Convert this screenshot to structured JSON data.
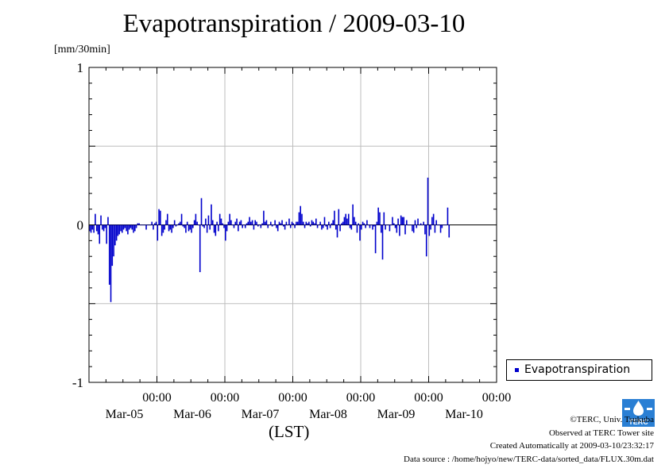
{
  "header": {
    "title": "Evapotranspiration / 2009-03-10",
    "unit_label": "[mm/30min]",
    "xlabel": "(LST)"
  },
  "legend": {
    "label": "Evapotranspiration",
    "color": "#0000cc"
  },
  "credits": {
    "line1": "©TERC, Univ. Tsukuba",
    "line2": "Observed at TERC Tower site",
    "line3": "Created Automatically at 2009-03-10/23:32:17",
    "line4": "Data source : /home/hojyo/new/TERC-data/sorted_data/FLUX.30m.dat"
  },
  "logo": {
    "icon": "terc-logo-icon",
    "text": "TERC",
    "color": "#2a7fd4"
  },
  "chart_data": {
    "type": "bar",
    "title": "Evapotranspiration / 2009-03-10",
    "ylabel": "[mm/30min]",
    "xlabel": "(LST)",
    "ylim": [
      -1,
      1
    ],
    "yticks": [
      {
        "value": 1,
        "label": "1"
      },
      {
        "value": 0,
        "label": "0"
      },
      {
        "value": -1,
        "label": "-1"
      }
    ],
    "xlim": [
      0,
      6
    ],
    "xticks": [
      {
        "value": 1,
        "label_time": "00:00",
        "label_date": "Mar-05"
      },
      {
        "value": 2,
        "label_time": "00:00",
        "label_date": "Mar-06"
      },
      {
        "value": 3,
        "label_time": "00:00",
        "label_date": "Mar-07"
      },
      {
        "value": 4,
        "label_time": "00:00",
        "label_date": "Mar-08"
      },
      {
        "value": 5,
        "label_time": "00:00",
        "label_date": "Mar-09"
      },
      {
        "value": 6,
        "label_time": "00:00",
        "label_date": "Mar-10"
      }
    ],
    "grid": true,
    "legend_position": "bottom-right",
    "series": [
      {
        "name": "Evapotranspiration",
        "color": "#0000cc",
        "x_start": 0.0,
        "x_step": 0.020833,
        "values": [
          -0.04,
          -0.05,
          -0.03,
          -0.05,
          0.07,
          -0.04,
          -0.06,
          -0.12,
          0.06,
          -0.03,
          -0.04,
          -0.02,
          -0.12,
          0.05,
          -0.38,
          -0.49,
          -0.26,
          -0.2,
          -0.13,
          -0.1,
          -0.07,
          -0.06,
          -0.04,
          -0.05,
          -0.03,
          -0.02,
          -0.04,
          -0.06,
          -0.03,
          -0.02,
          -0.03,
          -0.05,
          -0.04,
          -0.02,
          0.01,
          0.01,
          0.0,
          0.0,
          0.0,
          0.0,
          -0.03,
          0.0,
          0.0,
          0.0,
          0.02,
          -0.03,
          0.01,
          0.02,
          -0.1,
          0.1,
          0.09,
          -0.07,
          -0.05,
          -0.03,
          0.03,
          0.07,
          -0.04,
          -0.03,
          -0.05,
          -0.02,
          0.03,
          -0.01,
          0.0,
          0.01,
          0.02,
          0.07,
          -0.01,
          -0.02,
          -0.05,
          0.02,
          -0.04,
          -0.03,
          -0.05,
          -0.02,
          0.03,
          0.07,
          0.02,
          0.0,
          -0.3,
          0.17,
          -0.01,
          -0.02,
          0.04,
          -0.05,
          0.06,
          -0.03,
          0.13,
          0.03,
          -0.05,
          -0.07,
          0.02,
          -0.04,
          0.07,
          0.04,
          0.01,
          -0.02,
          -0.1,
          -0.04,
          0.02,
          0.07,
          0.03,
          0.0,
          -0.02,
          0.02,
          0.04,
          -0.04,
          0.02,
          0.03,
          -0.02,
          0.0,
          -0.02,
          0.01,
          0.02,
          0.05,
          0.02,
          0.03,
          -0.03,
          0.03,
          0.02,
          -0.01,
          0.0,
          -0.02,
          0.01,
          0.09,
          0.02,
          0.03,
          -0.02,
          0.0,
          0.02,
          -0.01,
          0.0,
          0.03,
          -0.02,
          -0.04,
          0.02,
          0.01,
          0.03,
          -0.01,
          -0.03,
          0.02,
          0.0,
          0.04,
          -0.02,
          0.02,
          0.01,
          -0.02,
          0.02,
          0.02,
          0.08,
          0.12,
          0.07,
          0.02,
          -0.02,
          0.02,
          0.01,
          0.02,
          -0.01,
          0.03,
          0.02,
          0.01,
          0.04,
          -0.02,
          0.0,
          0.02,
          -0.03,
          -0.02,
          0.05,
          -0.01,
          -0.03,
          0.02,
          -0.02,
          0.01,
          0.03,
          0.09,
          -0.03,
          -0.08,
          0.1,
          -0.04,
          0.01,
          0.02,
          0.05,
          0.07,
          0.04,
          0.07,
          -0.02,
          -0.03,
          0.13,
          0.05,
          0.02,
          -0.05,
          0.01,
          -0.1,
          -0.03,
          0.02,
          0.01,
          -0.02,
          0.03,
          0.0,
          -0.02,
          0.0,
          -0.03,
          -0.01,
          -0.18,
          0.02,
          0.11,
          0.08,
          -0.05,
          -0.22,
          0.08,
          -0.03,
          0.0,
          0.0,
          -0.04,
          0.0,
          0.05,
          0.01,
          -0.02,
          -0.05,
          0.04,
          -0.07,
          0.06,
          0.05,
          0.05,
          -0.06,
          0.03,
          0.0,
          0.0,
          0.0,
          -0.04,
          -0.05,
          0.03,
          -0.02,
          0.04,
          0.0,
          0.01,
          0.0,
          0.02,
          -0.06,
          -0.2,
          0.3,
          -0.07,
          -0.03,
          0.05,
          0.07,
          -0.05,
          0.03,
          0.0,
          0.0,
          -0.05,
          -0.02,
          0.0,
          0.0,
          0.0,
          0.11,
          -0.08
        ]
      }
    ]
  }
}
